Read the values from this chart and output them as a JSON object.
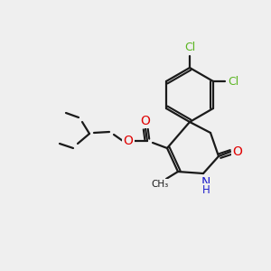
{
  "bg_color": "#efefef",
  "bond_color": "#1a1a1a",
  "atom_colors": {
    "O": "#e00000",
    "N": "#2020cc",
    "Cl": "#5ab520",
    "C": "#1a1a1a"
  },
  "figsize": [
    3.0,
    3.0
  ],
  "dpi": 100
}
